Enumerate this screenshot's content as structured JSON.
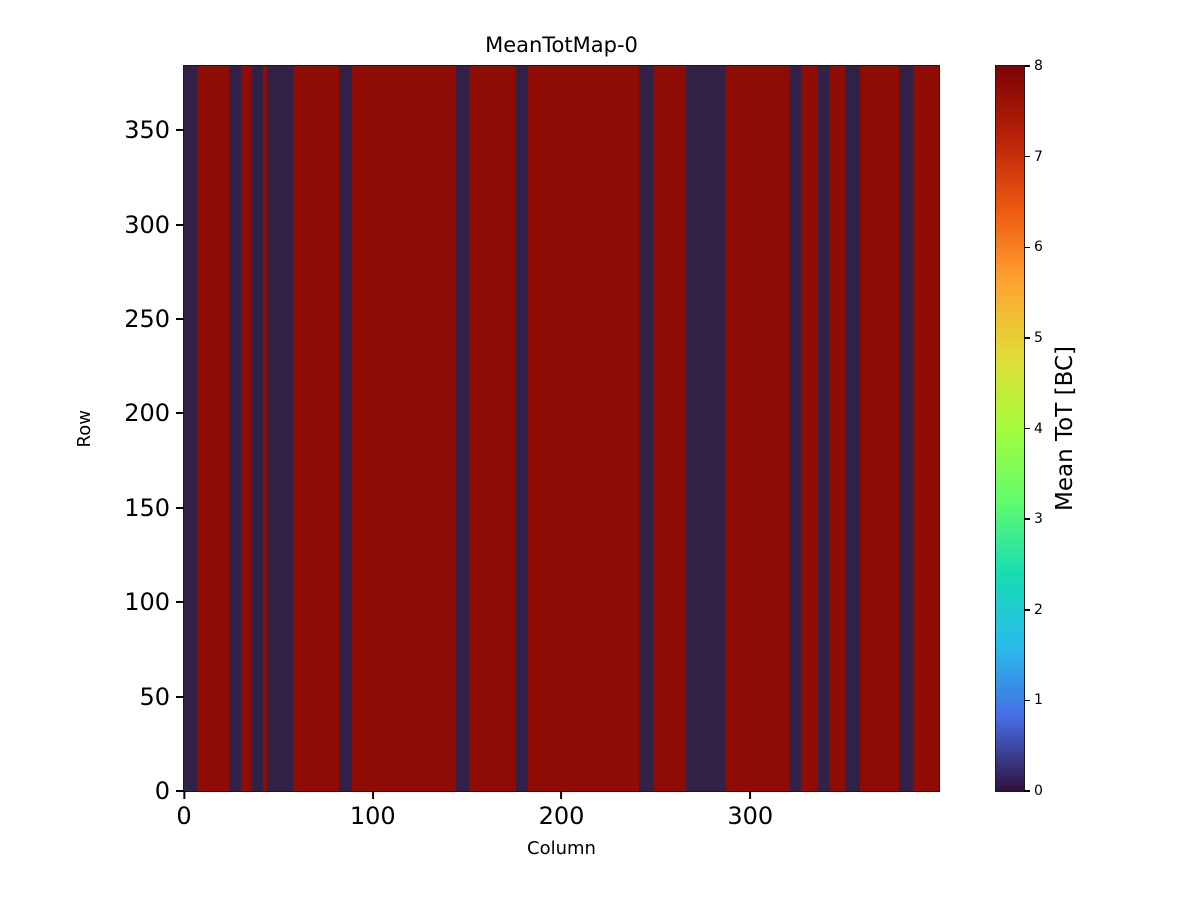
{
  "chart_data": {
    "type": "heatmap",
    "title": "MeanTotMap-0",
    "xlabel": "Column",
    "ylabel": "Row",
    "xlim": [
      0,
      400
    ],
    "ylim": [
      0,
      384
    ],
    "xticks": [
      0,
      100,
      200,
      300
    ],
    "yticks": [
      0,
      50,
      100,
      150,
      200,
      250,
      300,
      350
    ],
    "colorbar": {
      "label": "Mean ToT [BC]",
      "min": 0,
      "max": 8,
      "ticks": [
        0,
        1,
        2,
        3,
        4,
        5,
        6,
        7,
        8
      ],
      "colormap": "turbo",
      "position": "right"
    },
    "grid": false,
    "values": {
      "background_value": 8,
      "band_value": 0
    },
    "zero_column_bands": [
      [
        0,
        7
      ],
      [
        24,
        30
      ],
      [
        36,
        42
      ],
      [
        44,
        58
      ],
      [
        82,
        89
      ],
      [
        144,
        151
      ],
      [
        176,
        182
      ],
      [
        241,
        249
      ],
      [
        266,
        287
      ],
      [
        321,
        327
      ],
      [
        336,
        342
      ],
      [
        350,
        358
      ],
      [
        379,
        386
      ]
    ]
  },
  "colors": {
    "heat_high": "#8e0c04",
    "heat_low": "#312147",
    "axis": "#000000",
    "background": "#ffffff",
    "turbo_stops": [
      "#30123b",
      "#466be3",
      "#28bceb",
      "#18dcb4",
      "#61fc6c",
      "#a4fc3c",
      "#e1dc37",
      "#fda531",
      "#ef5a11",
      "#ba2208",
      "#7a0403"
    ]
  }
}
